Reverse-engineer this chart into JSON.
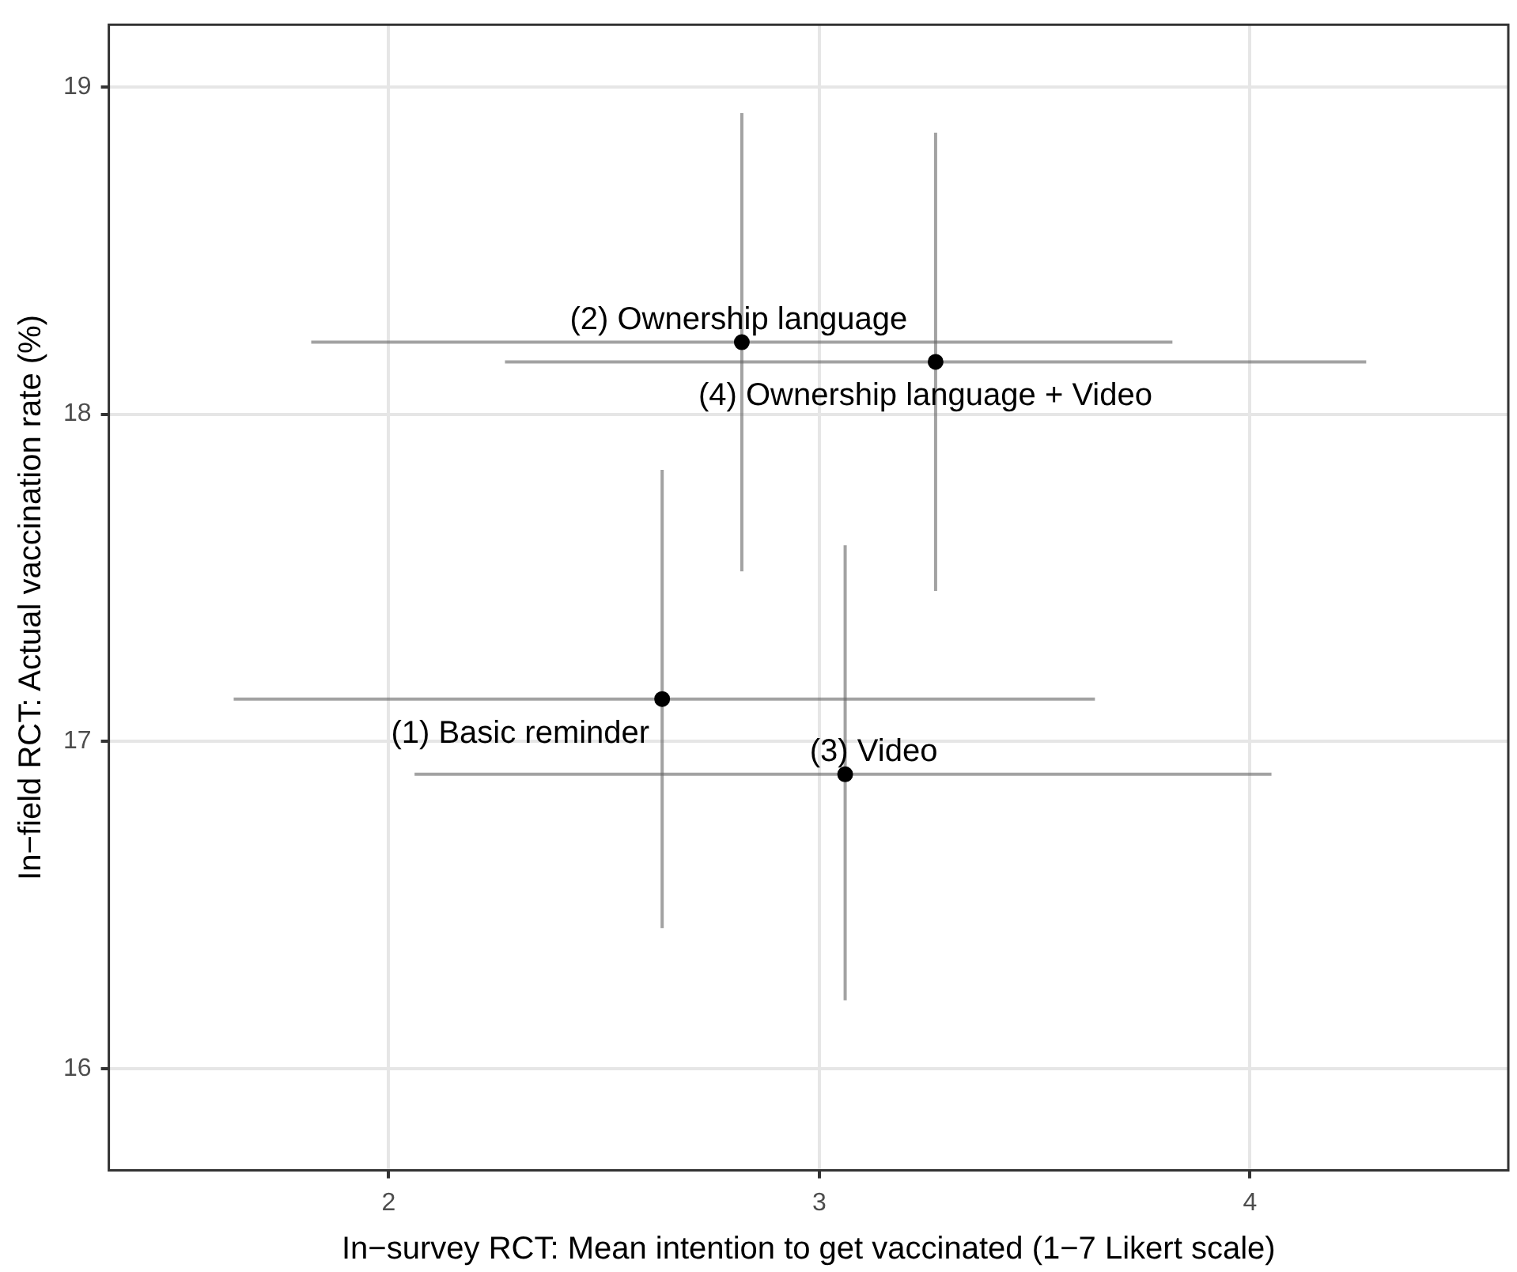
{
  "chart_data": {
    "type": "scatter",
    "xlabel": "In−survey RCT: Mean intention to get vaccinated (1−7 Likert scale)",
    "ylabel": "In−field RCT: Actual vaccination rate (%)",
    "series": [
      {
        "color": "#000000",
        "x": [
          2.635,
          2.82,
          3.06,
          3.27
        ],
        "values": [
          17.13,
          18.22,
          16.9,
          18.16
        ],
        "errors": [
          [
            16.43,
            17.83
          ],
          [
            17.52,
            18.92
          ],
          [
            16.21,
            17.6
          ],
          [
            17.46,
            18.86
          ]
        ],
        "xerrors": [
          [
            1.64,
            3.64
          ],
          [
            1.82,
            3.82
          ],
          [
            2.06,
            4.05
          ],
          [
            2.27,
            4.27
          ]
        ]
      }
    ],
    "annotations": [
      {
        "text": "(1) Basic reminder",
        "x": 2.635,
        "y": 17.13
      },
      {
        "text": "(2) Ownership language",
        "x": 2.82,
        "y": 18.22
      },
      {
        "text": "(3) Video",
        "x": 3.06,
        "y": 16.9
      },
      {
        "text": "(4) Ownership language + Video",
        "x": 3.27,
        "y": 18.16
      }
    ],
    "xlim": [
      1.35,
      4.6
    ],
    "ylim": [
      15.69,
      19.19
    ],
    "xticks": [
      2,
      3,
      4
    ],
    "yticks": [
      16,
      17,
      18,
      19
    ],
    "grid": true,
    "marker": "circle",
    "legend": false
  }
}
